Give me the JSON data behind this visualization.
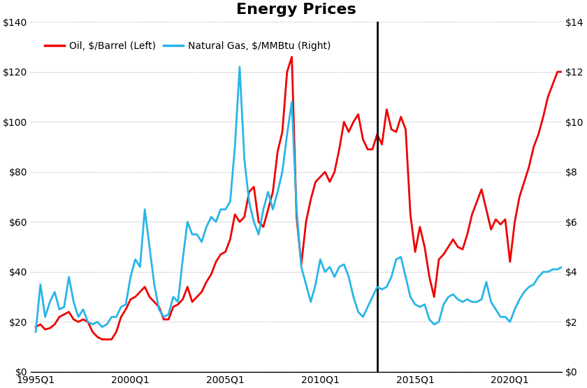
{
  "title": "Energy Prices",
  "title_fontsize": 16,
  "title_fontweight": "bold",
  "legend_oil": "Oil, $/Barrel (Left)",
  "legend_gas": "Natural Gas, $/MMBtu (Right)",
  "oil_color": "#ee0000",
  "gas_color": "#29b5e8",
  "vline_x": 2013.0,
  "vline_color": "black",
  "vline_lw": 2.0,
  "oil_lw": 2.0,
  "gas_lw": 2.0,
  "left_ylim": [
    0,
    140
  ],
  "right_ylim": [
    0,
    14
  ],
  "left_yticks": [
    0,
    20,
    40,
    60,
    80,
    100,
    120,
    140
  ],
  "right_yticks": [
    0,
    2,
    4,
    6,
    8,
    10,
    12,
    14
  ],
  "left_yticklabels": [
    "$0",
    "$20",
    "$40",
    "$60",
    "$80",
    "$100",
    "$120",
    "$140"
  ],
  "right_yticklabels": [
    "$0",
    "$2",
    "$4",
    "$6",
    "$8",
    "$10",
    "$12",
    "$14"
  ],
  "xlabel_ticks": [
    1995.0,
    2000.0,
    2005.0,
    2010.0,
    2015.0,
    2020.0
  ],
  "xlabel_labels": [
    "1995Q1",
    "2000Q1",
    "2005Q1",
    "2010Q1",
    "2015Q1",
    "2020Q1"
  ],
  "grid_color": "#aaaaaa",
  "grid_ls": ":",
  "grid_lw": 0.8,
  "oil_data": [
    [
      1995.0,
      18
    ],
    [
      1995.25,
      19
    ],
    [
      1995.5,
      17
    ],
    [
      1995.75,
      17.5
    ],
    [
      1996.0,
      19
    ],
    [
      1996.25,
      22
    ],
    [
      1996.5,
      23
    ],
    [
      1996.75,
      24
    ],
    [
      1997.0,
      21
    ],
    [
      1997.25,
      20
    ],
    [
      1997.5,
      21
    ],
    [
      1997.75,
      20
    ],
    [
      1998.0,
      16
    ],
    [
      1998.25,
      14
    ],
    [
      1998.5,
      13
    ],
    [
      1998.75,
      13
    ],
    [
      1999.0,
      13
    ],
    [
      1999.25,
      16
    ],
    [
      1999.5,
      22
    ],
    [
      1999.75,
      25
    ],
    [
      2000.0,
      29
    ],
    [
      2000.25,
      30
    ],
    [
      2000.5,
      32
    ],
    [
      2000.75,
      34
    ],
    [
      2001.0,
      30
    ],
    [
      2001.25,
      28
    ],
    [
      2001.5,
      26
    ],
    [
      2001.75,
      21
    ],
    [
      2002.0,
      21
    ],
    [
      2002.25,
      26
    ],
    [
      2002.5,
      27
    ],
    [
      2002.75,
      29
    ],
    [
      2003.0,
      34
    ],
    [
      2003.25,
      28
    ],
    [
      2003.5,
      30
    ],
    [
      2003.75,
      32
    ],
    [
      2004.0,
      36
    ],
    [
      2004.25,
      39
    ],
    [
      2004.5,
      44
    ],
    [
      2004.75,
      47
    ],
    [
      2005.0,
      48
    ],
    [
      2005.25,
      53
    ],
    [
      2005.5,
      63
    ],
    [
      2005.75,
      60
    ],
    [
      2006.0,
      62
    ],
    [
      2006.25,
      72
    ],
    [
      2006.5,
      74
    ],
    [
      2006.75,
      60
    ],
    [
      2007.0,
      58
    ],
    [
      2007.25,
      65
    ],
    [
      2007.5,
      72
    ],
    [
      2007.75,
      88
    ],
    [
      2008.0,
      96
    ],
    [
      2008.25,
      120
    ],
    [
      2008.5,
      126
    ],
    [
      2008.75,
      62
    ],
    [
      2009.0,
      43
    ],
    [
      2009.25,
      60
    ],
    [
      2009.5,
      69
    ],
    [
      2009.75,
      76
    ],
    [
      2010.0,
      78
    ],
    [
      2010.25,
      80
    ],
    [
      2010.5,
      76
    ],
    [
      2010.75,
      80
    ],
    [
      2011.0,
      89
    ],
    [
      2011.25,
      100
    ],
    [
      2011.5,
      96
    ],
    [
      2011.75,
      100
    ],
    [
      2012.0,
      103
    ],
    [
      2012.25,
      93
    ],
    [
      2012.5,
      89
    ],
    [
      2012.75,
      89
    ],
    [
      2013.0,
      95
    ],
    [
      2013.25,
      91
    ],
    [
      2013.5,
      105
    ],
    [
      2013.75,
      97
    ],
    [
      2014.0,
      96
    ],
    [
      2014.25,
      102
    ],
    [
      2014.5,
      97
    ],
    [
      2014.75,
      63
    ],
    [
      2015.0,
      48
    ],
    [
      2015.25,
      58
    ],
    [
      2015.5,
      50
    ],
    [
      2015.75,
      38
    ],
    [
      2016.0,
      30
    ],
    [
      2016.25,
      45
    ],
    [
      2016.5,
      47
    ],
    [
      2016.75,
      50
    ],
    [
      2017.0,
      53
    ],
    [
      2017.25,
      50
    ],
    [
      2017.5,
      49
    ],
    [
      2017.75,
      55
    ],
    [
      2018.0,
      63
    ],
    [
      2018.25,
      68
    ],
    [
      2018.5,
      73
    ],
    [
      2018.75,
      65
    ],
    [
      2019.0,
      57
    ],
    [
      2019.25,
      61
    ],
    [
      2019.5,
      59
    ],
    [
      2019.75,
      61
    ],
    [
      2020.0,
      44
    ],
    [
      2020.25,
      60
    ],
    [
      2020.5,
      70
    ],
    [
      2020.75,
      76
    ],
    [
      2021.0,
      82
    ],
    [
      2021.25,
      90
    ],
    [
      2021.5,
      95
    ],
    [
      2021.75,
      102
    ],
    [
      2022.0,
      110
    ],
    [
      2022.25,
      115
    ],
    [
      2022.5,
      120
    ],
    [
      2022.75,
      120
    ]
  ],
  "gas_data": [
    [
      1995.0,
      1.6
    ],
    [
      1995.25,
      3.5
    ],
    [
      1995.5,
      2.2
    ],
    [
      1995.75,
      2.8
    ],
    [
      1996.0,
      3.2
    ],
    [
      1996.25,
      2.5
    ],
    [
      1996.5,
      2.6
    ],
    [
      1996.75,
      3.8
    ],
    [
      1997.0,
      2.8
    ],
    [
      1997.25,
      2.2
    ],
    [
      1997.5,
      2.5
    ],
    [
      1997.75,
      2.0
    ],
    [
      1998.0,
      1.9
    ],
    [
      1998.25,
      2.0
    ],
    [
      1998.5,
      1.8
    ],
    [
      1998.75,
      1.9
    ],
    [
      1999.0,
      2.2
    ],
    [
      1999.25,
      2.2
    ],
    [
      1999.5,
      2.6
    ],
    [
      1999.75,
      2.7
    ],
    [
      2000.0,
      3.8
    ],
    [
      2000.25,
      4.5
    ],
    [
      2000.5,
      4.2
    ],
    [
      2000.75,
      6.5
    ],
    [
      2001.0,
      5.0
    ],
    [
      2001.25,
      3.5
    ],
    [
      2001.5,
      2.5
    ],
    [
      2001.75,
      2.2
    ],
    [
      2002.0,
      2.3
    ],
    [
      2002.25,
      3.0
    ],
    [
      2002.5,
      2.8
    ],
    [
      2002.75,
      4.5
    ],
    [
      2003.0,
      6.0
    ],
    [
      2003.25,
      5.5
    ],
    [
      2003.5,
      5.5
    ],
    [
      2003.75,
      5.2
    ],
    [
      2004.0,
      5.8
    ],
    [
      2004.25,
      6.2
    ],
    [
      2004.5,
      6.0
    ],
    [
      2004.75,
      6.5
    ],
    [
      2005.0,
      6.5
    ],
    [
      2005.25,
      6.8
    ],
    [
      2005.5,
      9.0
    ],
    [
      2005.75,
      12.2
    ],
    [
      2006.0,
      8.5
    ],
    [
      2006.25,
      6.8
    ],
    [
      2006.5,
      6.0
    ],
    [
      2006.75,
      5.5
    ],
    [
      2007.0,
      6.5
    ],
    [
      2007.25,
      7.2
    ],
    [
      2007.5,
      6.5
    ],
    [
      2007.75,
      7.2
    ],
    [
      2008.0,
      8.0
    ],
    [
      2008.25,
      9.5
    ],
    [
      2008.5,
      10.8
    ],
    [
      2008.75,
      6.5
    ],
    [
      2009.0,
      4.2
    ],
    [
      2009.25,
      3.5
    ],
    [
      2009.5,
      2.8
    ],
    [
      2009.75,
      3.5
    ],
    [
      2010.0,
      4.5
    ],
    [
      2010.25,
      4.0
    ],
    [
      2010.5,
      4.2
    ],
    [
      2010.75,
      3.8
    ],
    [
      2011.0,
      4.2
    ],
    [
      2011.25,
      4.3
    ],
    [
      2011.5,
      3.8
    ],
    [
      2011.75,
      3.0
    ],
    [
      2012.0,
      2.4
    ],
    [
      2012.25,
      2.2
    ],
    [
      2012.5,
      2.6
    ],
    [
      2012.75,
      3.0
    ],
    [
      2013.0,
      3.4
    ],
    [
      2013.25,
      3.3
    ],
    [
      2013.5,
      3.4
    ],
    [
      2013.75,
      3.8
    ],
    [
      2014.0,
      4.5
    ],
    [
      2014.25,
      4.6
    ],
    [
      2014.5,
      3.8
    ],
    [
      2014.75,
      3.0
    ],
    [
      2015.0,
      2.7
    ],
    [
      2015.25,
      2.6
    ],
    [
      2015.5,
      2.7
    ],
    [
      2015.75,
      2.1
    ],
    [
      2016.0,
      1.9
    ],
    [
      2016.25,
      2.0
    ],
    [
      2016.5,
      2.7
    ],
    [
      2016.75,
      3.0
    ],
    [
      2017.0,
      3.1
    ],
    [
      2017.25,
      2.9
    ],
    [
      2017.5,
      2.8
    ],
    [
      2017.75,
      2.9
    ],
    [
      2018.0,
      2.8
    ],
    [
      2018.25,
      2.8
    ],
    [
      2018.5,
      2.9
    ],
    [
      2018.75,
      3.6
    ],
    [
      2019.0,
      2.8
    ],
    [
      2019.25,
      2.5
    ],
    [
      2019.5,
      2.2
    ],
    [
      2019.75,
      2.2
    ],
    [
      2020.0,
      2.0
    ],
    [
      2020.25,
      2.5
    ],
    [
      2020.5,
      2.9
    ],
    [
      2020.75,
      3.2
    ],
    [
      2021.0,
      3.4
    ],
    [
      2021.25,
      3.5
    ],
    [
      2021.5,
      3.8
    ],
    [
      2021.75,
      4.0
    ],
    [
      2022.0,
      4.0
    ],
    [
      2022.25,
      4.1
    ],
    [
      2022.5,
      4.1
    ],
    [
      2022.75,
      4.2
    ]
  ],
  "xmin": 1994.75,
  "xmax": 2022.75
}
